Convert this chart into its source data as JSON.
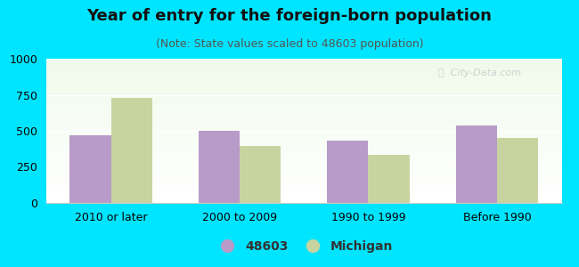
{
  "title": "Year of entry for the foreign-born population",
  "subtitle": "(Note: State values scaled to 48603 population)",
  "categories": [
    "2010 or later",
    "2000 to 2009",
    "1990 to 1999",
    "Before 1990"
  ],
  "values_48603": [
    470,
    500,
    430,
    540
  ],
  "values_michigan": [
    730,
    395,
    335,
    450
  ],
  "bar_color_48603": "#b89bc8",
  "bar_color_michigan": "#c8d4a0",
  "background_outer": "#00e5ff",
  "ylim": [
    0,
    1000
  ],
  "yticks": [
    0,
    250,
    500,
    750,
    1000
  ],
  "legend_label_1": "48603",
  "legend_label_2": "Michigan",
  "title_fontsize": 13,
  "subtitle_fontsize": 9,
  "tick_fontsize": 9,
  "legend_fontsize": 10,
  "bar_width": 0.32
}
